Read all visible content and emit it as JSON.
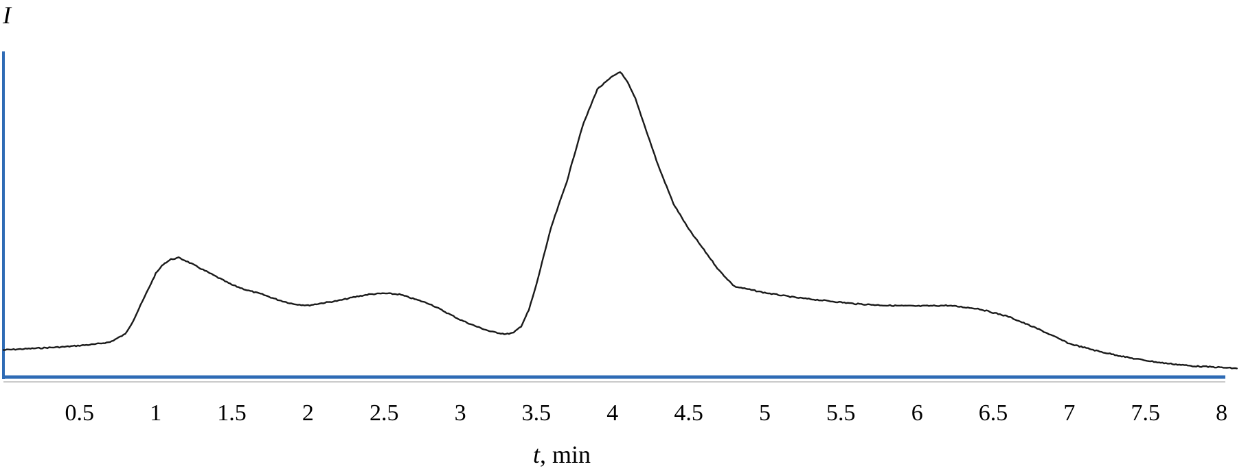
{
  "chart_data": {
    "type": "line",
    "title": "",
    "ylabel": "I",
    "xlabel": {
      "var": "t",
      "unit": ", min"
    },
    "xlim": [
      0,
      8.1
    ],
    "ylim": [
      0,
      100
    ],
    "x_ticks": [
      0.5,
      1,
      1.5,
      2,
      2.5,
      3,
      3.5,
      4,
      4.5,
      5,
      5.5,
      6,
      6.5,
      7,
      7.5,
      8
    ],
    "x_tick_labels": [
      "0.5",
      "1",
      "1.5",
      "2",
      "2.5",
      "3",
      "3.5",
      "4",
      "4.5",
      "5",
      "5.5",
      "6",
      "6.5",
      "7",
      "7.5",
      "8"
    ],
    "grid": false,
    "colors": {
      "line": "#1a1a1a",
      "axis": "#2e6bb5"
    },
    "series": [
      {
        "x": [
          0.0,
          0.2,
          0.4,
          0.6,
          0.7,
          0.8,
          0.85,
          0.9,
          0.95,
          1.0,
          1.05,
          1.1,
          1.15,
          1.2,
          1.3,
          1.4,
          1.5,
          1.6,
          1.7,
          1.8,
          1.9,
          2.0,
          2.1,
          2.2,
          2.3,
          2.4,
          2.5,
          2.6,
          2.7,
          2.8,
          2.9,
          3.0,
          3.1,
          3.2,
          3.3,
          3.35,
          3.4,
          3.45,
          3.5,
          3.55,
          3.6,
          3.7,
          3.8,
          3.9,
          4.0,
          4.05,
          4.1,
          4.15,
          4.2,
          4.3,
          4.4,
          4.5,
          4.6,
          4.7,
          4.8,
          5.0,
          5.2,
          5.4,
          5.6,
          5.8,
          6.0,
          6.2,
          6.4,
          6.6,
          6.8,
          7.0,
          7.2,
          7.4,
          7.6,
          7.8,
          8.0,
          8.1
        ],
        "y": [
          7.0,
          7.5,
          8.0,
          8.8,
          9.5,
          12.0,
          16.0,
          21.0,
          26.0,
          31.0,
          34.0,
          35.5,
          36.0,
          35.0,
          32.5,
          30.0,
          27.5,
          25.8,
          24.5,
          22.8,
          21.5,
          21.0,
          21.8,
          22.5,
          23.6,
          24.5,
          24.8,
          24.5,
          23.0,
          21.5,
          19.0,
          16.5,
          14.5,
          12.8,
          12.0,
          12.4,
          14.5,
          19.5,
          27.5,
          37.0,
          46.0,
          60.0,
          77.0,
          89.0,
          93.0,
          94.5,
          91.0,
          86.0,
          79.0,
          65.0,
          53.0,
          45.0,
          38.5,
          32.0,
          27.0,
          25.0,
          23.5,
          22.5,
          21.5,
          21.0,
          20.8,
          21.0,
          20.0,
          17.5,
          13.5,
          9.0,
          6.5,
          4.5,
          3.0,
          2.0,
          1.5,
          1.2
        ]
      }
    ]
  }
}
